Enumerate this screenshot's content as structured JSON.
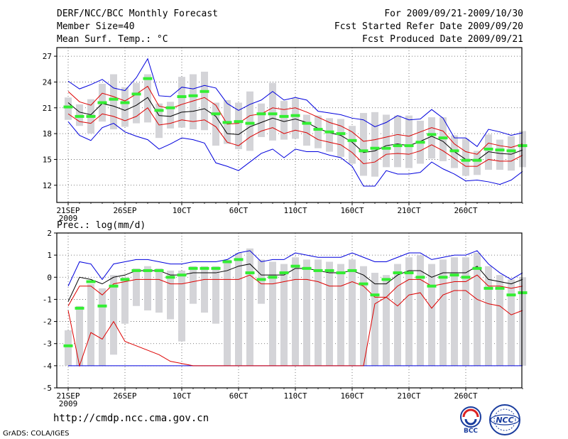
{
  "header": {
    "title": "DERF/NCC/BCC Monthly Forecast",
    "member": "Member Size=40",
    "variable1": "Mean Surf. Temp.: °C",
    "period": "For 2009/09/21-2009/10/30",
    "started": "Fcst Started Refer Date 2009/09/20",
    "produced": "Fcst Produced Date 2009/09/21"
  },
  "footer": {
    "url": "http://cmdp.ncc.cma.gov.cn",
    "credit": "GrADS: COLA/IGES"
  },
  "logos": {
    "bcc": "BCC",
    "ncc": "NCC"
  },
  "colors": {
    "green": "#33ee33",
    "box": "#d4d4d8",
    "blue": "#0000dd",
    "red": "#dd0000",
    "ens": "#000000"
  },
  "chart_data": [
    {
      "type": "box-ensemble",
      "title": "Mean Surf. Temp.: °C",
      "x_ticks": [
        {
          "day": 0,
          "label": "21SEP",
          "sub": "2009"
        },
        {
          "day": 5,
          "label": "26SEP"
        },
        {
          "day": 10,
          "label": "10CT"
        },
        {
          "day": 15,
          "label": "60CT"
        },
        {
          "day": 20,
          "label": "110CT"
        },
        {
          "day": 25,
          "label": "160CT"
        },
        {
          "day": 30,
          "label": "210CT"
        },
        {
          "day": 35,
          "label": "260CT"
        }
      ],
      "ylim": [
        10,
        28
      ],
      "y_ticks": [
        12,
        15,
        18,
        21,
        24,
        27
      ],
      "blue_upper": [
        24.1,
        23.2,
        23.7,
        24.3,
        23.3,
        23.0,
        24.5,
        26.7,
        22.4,
        22.3,
        23.4,
        23.2,
        23.6,
        23.3,
        21.5,
        20.7,
        21.4,
        21.9,
        22.9,
        21.9,
        22.2,
        21.9,
        20.6,
        20.4,
        20.2,
        19.8,
        19.6,
        18.8,
        19.3,
        20.1,
        19.6,
        19.7,
        20.8,
        19.8,
        17.5,
        17.5,
        16.5,
        18.5,
        18.2,
        17.8,
        18.1
      ],
      "blue_lower": [
        19.4,
        17.8,
        17.2,
        18.7,
        19.2,
        18.2,
        17.7,
        17.3,
        16.2,
        16.8,
        17.5,
        17.3,
        16.9,
        14.6,
        14.2,
        13.7,
        14.7,
        15.7,
        16.2,
        15.2,
        16.2,
        15.9,
        15.9,
        15.5,
        15.2,
        14.2,
        11.9,
        11.9,
        13.7,
        13.3,
        13.3,
        13.5,
        14.7,
        13.9,
        13.3,
        12.5,
        12.6,
        12.4,
        12.1,
        12.6,
        13.6
      ],
      "red_upper": [
        22.9,
        21.7,
        21.3,
        22.7,
        22.3,
        21.8,
        22.6,
        23.5,
        21.2,
        20.9,
        21.4,
        21.8,
        22.2,
        21.3,
        19.1,
        19.2,
        20.1,
        20.3,
        21.0,
        20.8,
        21.0,
        20.5,
        19.9,
        19.3,
        18.9,
        18.2,
        17.1,
        17.3,
        17.6,
        17.9,
        17.7,
        18.2,
        18.7,
        18.3,
        16.8,
        15.9,
        15.6,
        16.9,
        16.6,
        16.4,
        16.8
      ],
      "red_lower": [
        20.3,
        19.4,
        19.2,
        20.3,
        20.0,
        19.5,
        20.0,
        21.0,
        19.0,
        19.2,
        19.6,
        19.4,
        19.6,
        18.8,
        17.0,
        16.6,
        17.6,
        18.3,
        18.7,
        18.0,
        18.4,
        18.1,
        17.3,
        17.0,
        16.7,
        15.8,
        14.5,
        14.7,
        15.6,
        15.7,
        15.6,
        16.0,
        16.7,
        16.0,
        15.1,
        14.2,
        14.2,
        15.0,
        14.8,
        14.8,
        15.5
      ],
      "ens_mean": [
        21.6,
        20.5,
        20.2,
        21.5,
        21.2,
        20.7,
        21.3,
        22.2,
        20.1,
        20.0,
        20.5,
        20.6,
        20.9,
        20.0,
        18.0,
        17.9,
        18.8,
        19.3,
        19.8,
        19.4,
        19.7,
        19.3,
        18.6,
        18.1,
        17.8,
        17.0,
        15.8,
        16.0,
        16.6,
        16.8,
        16.6,
        17.1,
        17.7,
        17.1,
        15.9,
        15.0,
        14.9,
        15.9,
        15.7,
        15.6,
        16.1
      ],
      "green": [
        21.1,
        20.0,
        20.0,
        21.6,
        22.0,
        21.6,
        22.6,
        24.4,
        20.7,
        21.0,
        22.3,
        22.4,
        22.9,
        20.3,
        19.3,
        19.4,
        19.2,
        20.3,
        20.3,
        20.0,
        20.1,
        19.2,
        18.5,
        18.2,
        18.0,
        17.2,
        16.0,
        16.3,
        16.3,
        16.6,
        16.6,
        17.0,
        17.9,
        17.5,
        16.0,
        14.9,
        14.9,
        16.2,
        16.1,
        16.0,
        16.6
      ],
      "box_top": [
        22.2,
        21.4,
        22.0,
        23.8,
        24.9,
        23.4,
        23.9,
        24.9,
        21.5,
        21.7,
        24.6,
        24.9,
        25.2,
        21.6,
        21.9,
        21.6,
        22.9,
        21.5,
        23.9,
        21.8,
        22.1,
        20.2,
        20.1,
        19.8,
        19.7,
        18.9,
        20.4,
        20.5,
        20.2,
        20.1,
        20.1,
        19.5,
        19.9,
        19.9,
        17.8,
        17.4,
        16.0,
        17.9,
        17.3,
        17.7,
        18.3
      ],
      "box_bottom": [
        19.6,
        18.9,
        18.0,
        19.4,
        18.5,
        18.8,
        19.2,
        19.3,
        17.5,
        18.6,
        18.7,
        18.5,
        18.4,
        16.6,
        16.8,
        16.2,
        16.0,
        17.6,
        17.2,
        17.3,
        17.4,
        16.6,
        16.3,
        15.9,
        15.3,
        14.5,
        13.1,
        13.0,
        14.1,
        14.1,
        14.0,
        14.5,
        15.1,
        14.8,
        14.0,
        13.1,
        13.2,
        13.8,
        13.8,
        13.7,
        14.1
      ]
    },
    {
      "type": "box-ensemble",
      "title": "Prec.: log(mm/d)",
      "x_ticks": [
        {
          "day": 0,
          "label": "21SEP",
          "sub": "2009"
        },
        {
          "day": 5,
          "label": "26SEP"
        },
        {
          "day": 10,
          "label": "10CT"
        },
        {
          "day": 15,
          "label": "60CT"
        },
        {
          "day": 20,
          "label": "110CT"
        },
        {
          "day": 25,
          "label": "160CT"
        },
        {
          "day": 30,
          "label": "210CT"
        },
        {
          "day": 35,
          "label": "260CT"
        }
      ],
      "ylim": [
        -5,
        2
      ],
      "y_ticks": [
        -5,
        -4,
        -3,
        -2,
        -1,
        0,
        1,
        2
      ],
      "blue_upper": [
        -0.4,
        0.7,
        0.6,
        -0.1,
        0.6,
        0.7,
        0.8,
        0.8,
        0.7,
        0.6,
        0.6,
        0.7,
        0.7,
        0.7,
        0.8,
        1.1,
        1.2,
        0.7,
        0.8,
        0.8,
        1.1,
        1.0,
        0.9,
        0.9,
        0.9,
        1.1,
        0.9,
        0.7,
        0.7,
        0.9,
        1.1,
        1.1,
        0.8,
        0.9,
        1.0,
        1.0,
        1.2,
        0.6,
        0.2,
        -0.1,
        0.2
      ],
      "blue_lower": [
        -4,
        -4,
        -4,
        -4,
        -4,
        -4,
        -4,
        -4,
        -4,
        -4,
        -4,
        -4,
        -4,
        -4,
        -4,
        -4,
        -4,
        -4,
        -4,
        -4,
        -4,
        -4,
        -4,
        -4,
        -4,
        -4,
        -4,
        -4,
        -4,
        -4,
        -4,
        -4,
        -4,
        -4,
        -4,
        -4,
        -4,
        -4,
        -4,
        -4,
        -4
      ],
      "red_upper": [
        -1.3,
        -0.4,
        -0.4,
        -0.8,
        -0.3,
        -0.2,
        -0.1,
        -0.1,
        -0.1,
        -0.3,
        -0.3,
        -0.2,
        -0.1,
        -0.1,
        -0.1,
        -0.1,
        0.1,
        -0.3,
        -0.3,
        -0.2,
        -0.1,
        -0.1,
        -0.2,
        -0.4,
        -0.4,
        -0.2,
        -0.4,
        -0.9,
        -0.9,
        -0.4,
        -0.1,
        -0.1,
        -0.4,
        -0.3,
        -0.2,
        -0.2,
        0.1,
        -0.4,
        -0.4,
        -0.5,
        -0.4
      ],
      "red_lower": [
        -1.5,
        -4.0,
        -2.5,
        -2.8,
        -2.0,
        -2.9,
        -3.1,
        -3.3,
        -3.5,
        -3.8,
        -3.9,
        -4.0,
        -4.0,
        -4.0,
        -4.0,
        -4.0,
        -4.0,
        -4.0,
        -4.0,
        -4.0,
        -4.0,
        -4.0,
        -4.0,
        -4.0,
        -4.0,
        -4.0,
        -4.0,
        -1.2,
        -0.9,
        -1.3,
        -0.8,
        -0.7,
        -1.4,
        -0.8,
        -0.6,
        -0.6,
        -1.0,
        -1.2,
        -1.3,
        -1.7,
        -1.5
      ],
      "ens_mean": [
        -1.1,
        0.0,
        -0.1,
        -0.3,
        0.0,
        0.1,
        0.3,
        0.3,
        0.3,
        0.1,
        0.1,
        0.2,
        0.2,
        0.2,
        0.3,
        0.5,
        0.6,
        0.1,
        0.1,
        0.1,
        0.4,
        0.4,
        0.3,
        0.2,
        0.2,
        0.3,
        0.1,
        -0.3,
        -0.3,
        0.1,
        0.3,
        0.3,
        0.0,
        0.2,
        0.2,
        0.2,
        0.5,
        -0.1,
        -0.2,
        -0.3,
        -0.1
      ],
      "green": [
        -3.1,
        -1.4,
        -0.2,
        -1.3,
        -0.4,
        -0.1,
        0.3,
        0.3,
        0.3,
        0.0,
        0.1,
        0.4,
        0.4,
        0.4,
        0.7,
        0.8,
        0.2,
        -0.1,
        0.0,
        0.2,
        0.5,
        0.4,
        0.3,
        0.3,
        0.2,
        0.3,
        -0.3,
        -0.8,
        -0.1,
        0.2,
        0.2,
        0.0,
        -0.4,
        0.0,
        0.1,
        0.0,
        0.4,
        -0.5,
        -0.5,
        -0.8,
        -0.7
      ],
      "box_top": [
        -2.4,
        -1.3,
        -0.3,
        -0.5,
        0.1,
        0.0,
        0.4,
        0.5,
        0.4,
        0.3,
        0.3,
        0.5,
        0.5,
        0.5,
        0.8,
        1.1,
        1.3,
        0.8,
        0.7,
        0.6,
        0.9,
        0.8,
        0.8,
        0.7,
        0.6,
        0.8,
        0.5,
        0.2,
        0.1,
        0.6,
        0.9,
        1.0,
        0.6,
        0.8,
        0.9,
        0.9,
        1.1,
        0.5,
        0.1,
        -0.1,
        0.0
      ],
      "box_bottom": [
        -4,
        -4,
        -4,
        -4,
        -3.5,
        -2.1,
        -1.3,
        -1.5,
        -1.6,
        -1.9,
        -2.9,
        -1.2,
        -1.6,
        -2.1,
        -4,
        -4,
        -4,
        -1.2,
        -4,
        -4,
        -4,
        -4,
        -4,
        -4,
        -4,
        -4,
        -4,
        -4,
        -4,
        -4,
        -4,
        -4,
        -4,
        -4,
        -4,
        -4,
        -4,
        -4,
        -4,
        -4,
        -4
      ]
    }
  ]
}
